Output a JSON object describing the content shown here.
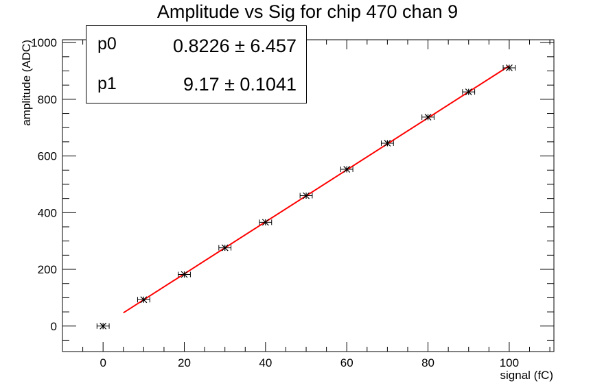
{
  "chart_data": {
    "type": "scatter",
    "title": "Amplitude vs Sig for chip 470 chan 9",
    "xlabel": "signal (fC)",
    "ylabel": "amplitude (ADC)",
    "xlim": [
      -10,
      111
    ],
    "ylim": [
      -90,
      1010
    ],
    "xticks": [
      0,
      20,
      40,
      60,
      80,
      100
    ],
    "yticks": [
      0,
      200,
      400,
      600,
      800,
      1000
    ],
    "xtick_labels": [
      "0",
      "20",
      "40",
      "60",
      "80",
      "100"
    ],
    "ytick_labels": [
      "0",
      "200",
      "400",
      "600",
      "800",
      "1000"
    ],
    "grid": false,
    "series": [
      {
        "marker": "asterisk-with-error-bars",
        "color": "#000000",
        "x": [
          0,
          10,
          20,
          30,
          40,
          50,
          60,
          70,
          80,
          90,
          100
        ],
        "y": [
          0,
          93,
          182,
          276,
          366,
          460,
          553,
          645,
          737,
          826,
          911
        ],
        "xerr": 1.5
      }
    ],
    "fit": {
      "color": "#ff0000",
      "x_range": [
        5,
        100
      ],
      "params": [
        {
          "name": "p0",
          "value": "0.8226 ± 6.457",
          "numeric": 0.8226
        },
        {
          "name": "p1",
          "value": "9.17 ± 0.1041",
          "numeric": 9.17
        }
      ]
    }
  }
}
